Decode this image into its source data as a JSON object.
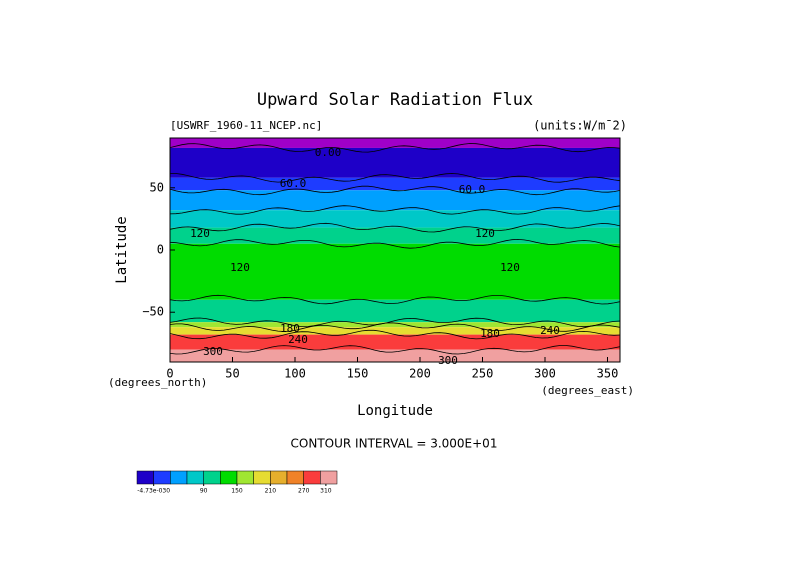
{
  "chart_data": {
    "type": "contour",
    "title": "Upward Solar Radiation Flux",
    "subtitle_left": "[USWRF_1960-11_NCEP.nc]",
    "subtitle_right": "(units:W/m¯2)",
    "y_label": "Latitude",
    "y_unit": "(degrees_north)",
    "x_label": "Longitude",
    "x_unit": "(degrees_east)",
    "footer": "CONTOUR INTERVAL = 3.000E+01",
    "xlim": [
      0,
      360
    ],
    "xticks": [
      0,
      50,
      100,
      150,
      200,
      250,
      300,
      350
    ],
    "ylim": [
      -90,
      90
    ],
    "yticks": [
      {
        "value": -50,
        "label": "−50"
      },
      0,
      50
    ],
    "bands": [
      {
        "lat": [
          82,
          90
        ],
        "value": 0,
        "color": "#a000c8"
      },
      {
        "lat": [
          58,
          82
        ],
        "value": 30,
        "color": "#1e00c8"
      },
      {
        "lat": [
          48,
          58
        ],
        "value": 60,
        "color": "#1e3cff"
      },
      {
        "lat": [
          32,
          48
        ],
        "value": 60,
        "color": "#00a0ff"
      },
      {
        "lat": [
          18,
          32
        ],
        "value": 90,
        "color": "#00c8c8"
      },
      {
        "lat": [
          5,
          18
        ],
        "value": 120,
        "color": "#00d28c"
      },
      {
        "lat": [
          -40,
          5
        ],
        "value": 150,
        "color": "#00dc00"
      },
      {
        "lat": [
          -58,
          -40
        ],
        "value": 120,
        "color": "#00d28c"
      },
      {
        "lat": [
          -62,
          -58
        ],
        "value": 180,
        "color": "#a0e632"
      },
      {
        "lat": [
          -68,
          -62
        ],
        "value": 240,
        "color": "#e6dc32"
      },
      {
        "lat": [
          -80,
          -68
        ],
        "value": 300,
        "color": "#fa3c3c"
      },
      {
        "lat": [
          -90,
          -80
        ],
        "value": 300,
        "color": "#f0a0a0"
      }
    ],
    "contour_labels": [
      "0.00",
      "60.0",
      "60.0",
      "120",
      "120",
      "120",
      "120",
      "180",
      "240",
      "180",
      "240",
      "300",
      "300"
    ],
    "colorbar": {
      "lim": [
        -30,
        330
      ],
      "colors": [
        "#1e00c8",
        "#1e3cff",
        "#00a0ff",
        "#00c8c8",
        "#00d28c",
        "#00dc00",
        "#a0e632",
        "#e6dc32",
        "#e6af2d",
        "#f08228",
        "#fa3c3c",
        "#f0a0a0"
      ],
      "ticks": [
        {
          "value": 0,
          "label": "-4.73e-030"
        },
        90,
        150,
        210,
        270,
        310
      ]
    }
  }
}
